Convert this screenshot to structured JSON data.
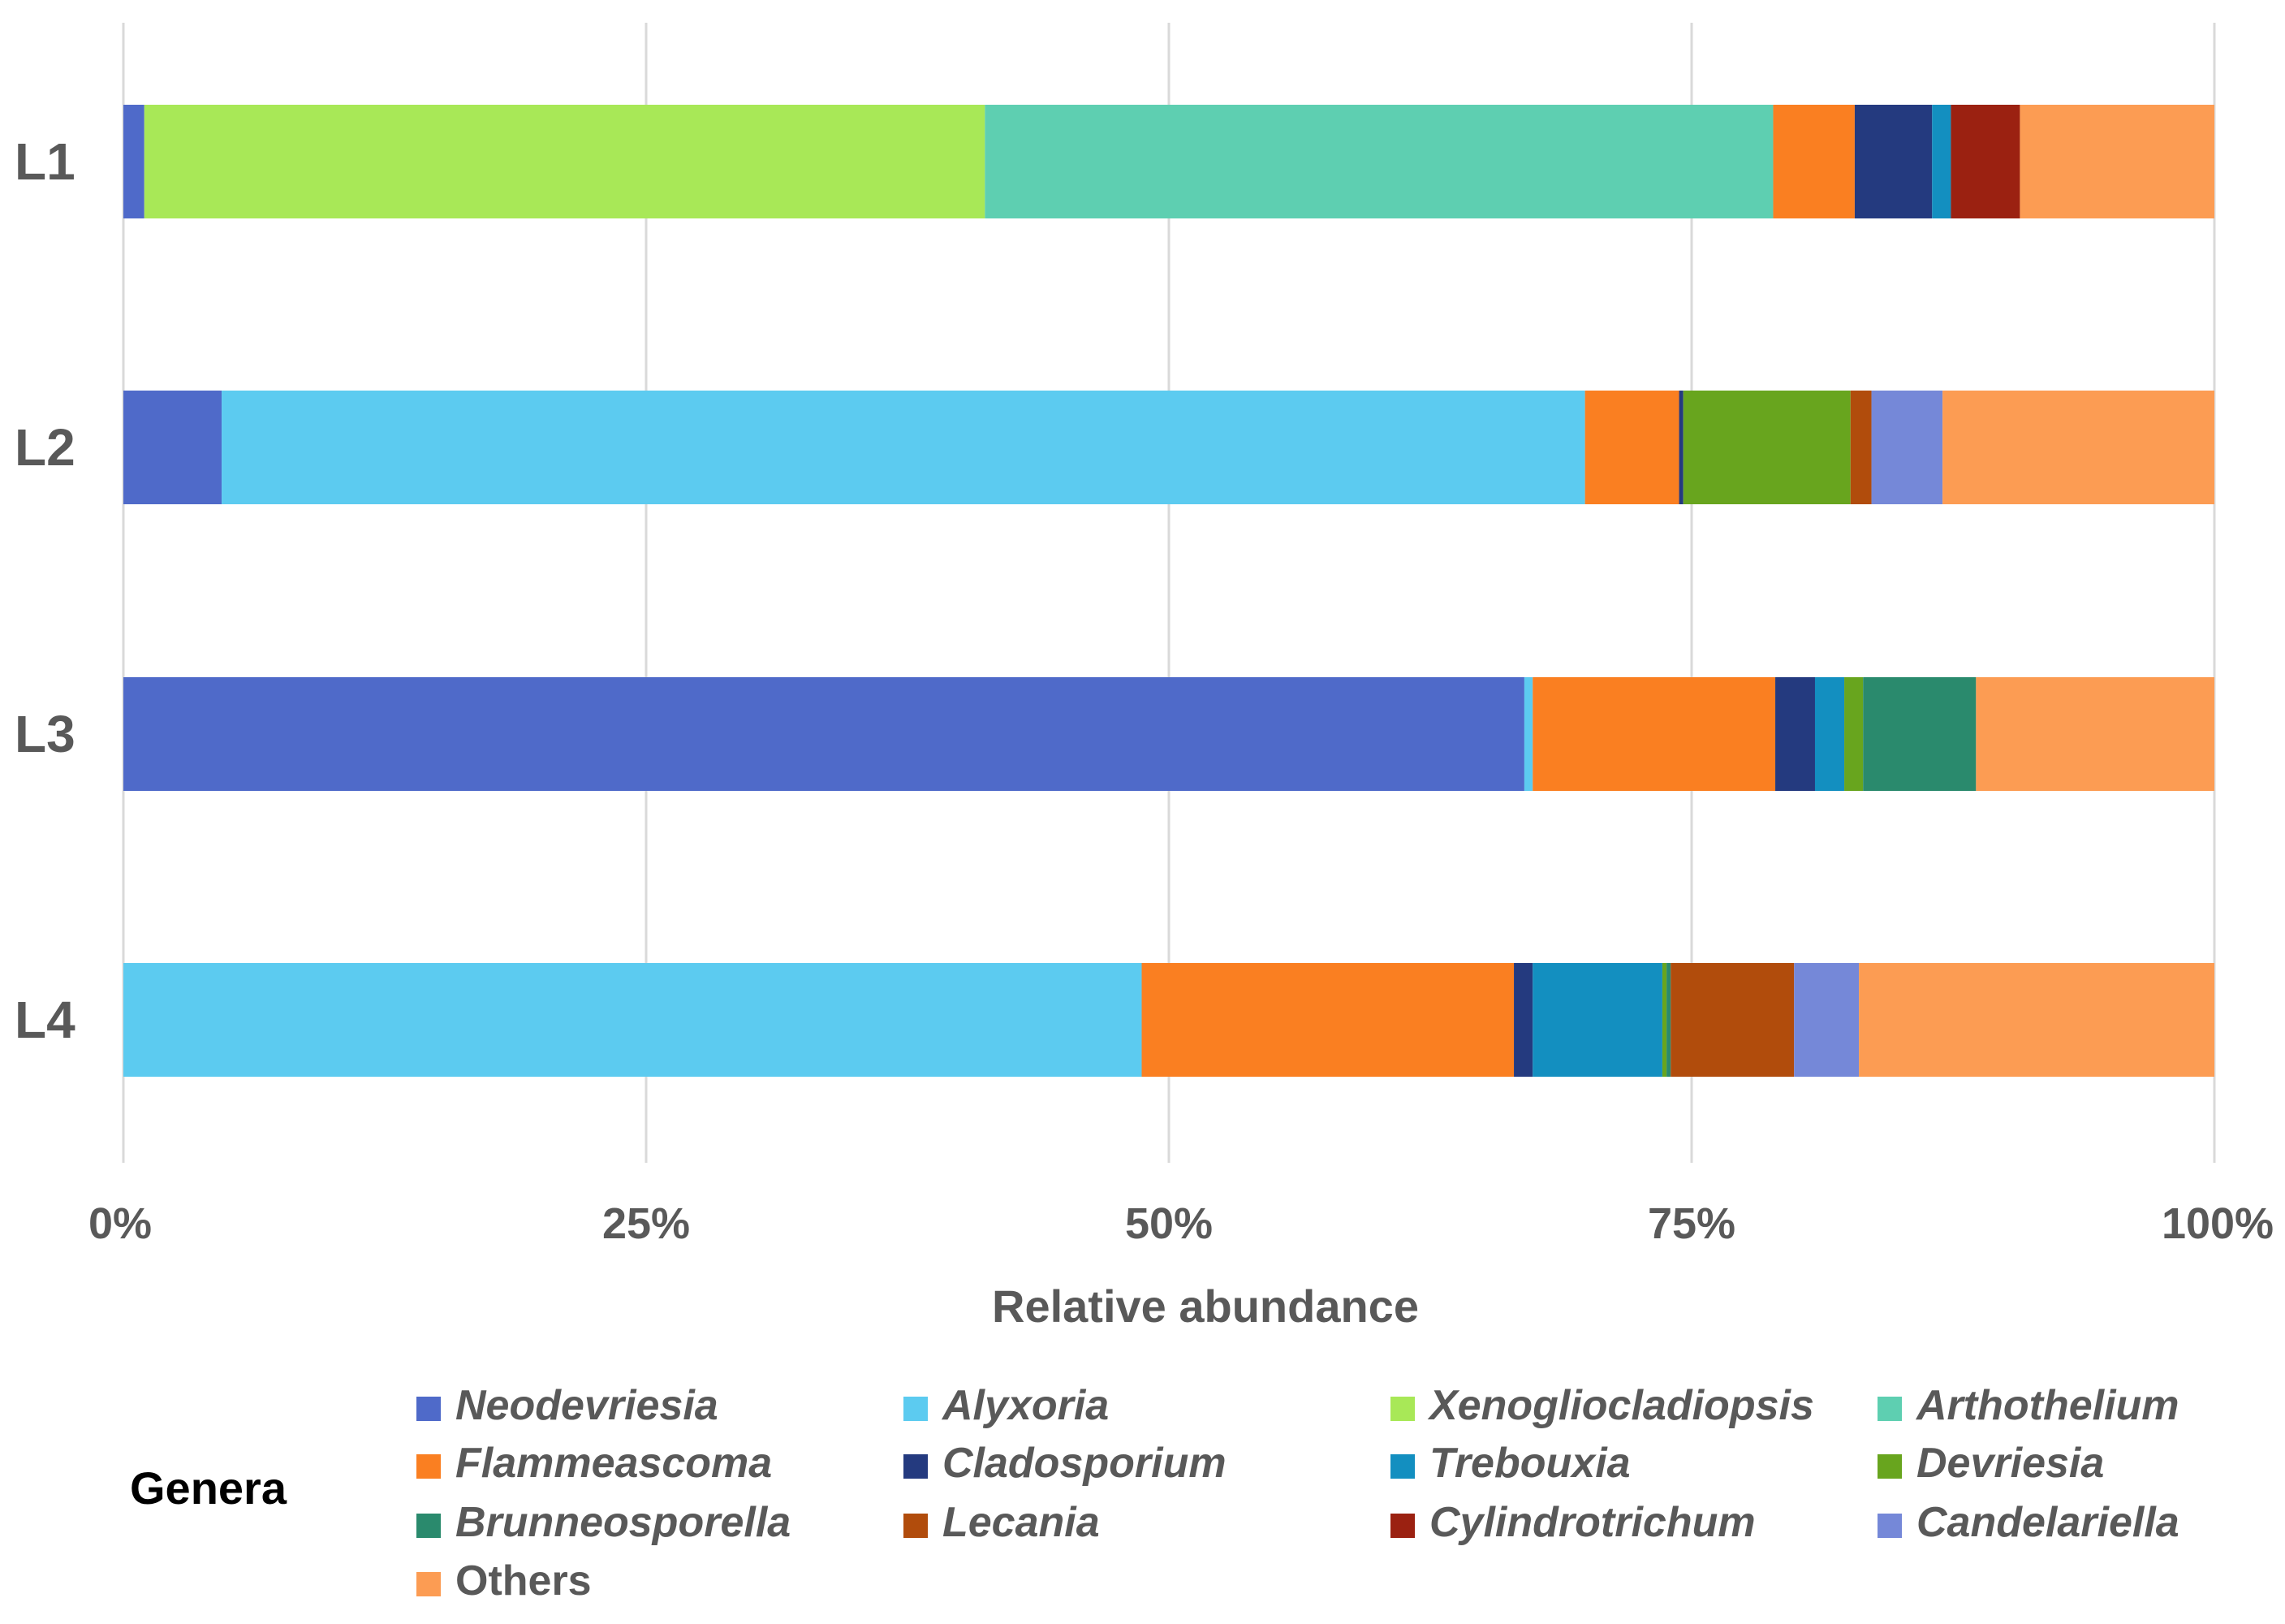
{
  "chart_data": {
    "type": "bar",
    "orientation": "horizontal",
    "stacked": "percent",
    "categories": [
      "L1",
      "L2",
      "L3",
      "L4"
    ],
    "xlabel": "Relative abundance",
    "xlim": [
      0,
      100
    ],
    "x_ticks": [
      "0%",
      "25%",
      "50%",
      "75%",
      "100%"
    ],
    "grid": true,
    "legend_title": "Genera",
    "legend_position": "bottom",
    "series": [
      {
        "name": "Neodevriesia",
        "color": "#4F6AC9",
        "italic": true,
        "values": [
          1.0,
          4.7,
          67.0,
          0.0
        ]
      },
      {
        "name": "Alyxoria",
        "color": "#5CCBF0",
        "italic": true,
        "values": [
          0.0,
          65.2,
          0.4,
          48.7
        ]
      },
      {
        "name": "Xenogliocladiopsis",
        "color": "#A8E857",
        "italic": true,
        "values": [
          40.2,
          0.0,
          0.0,
          0.0
        ]
      },
      {
        "name": "Arthothelium",
        "color": "#5ECFB1",
        "italic": true,
        "values": [
          37.7,
          0.0,
          0.0,
          0.0
        ]
      },
      {
        "name": "Flammeascoma",
        "color": "#FA7F21",
        "italic": true,
        "values": [
          3.9,
          4.5,
          11.6,
          17.8
        ]
      },
      {
        "name": "Cladosporium",
        "color": "#243A7F",
        "italic": true,
        "values": [
          3.7,
          0.2,
          1.9,
          0.9
        ]
      },
      {
        "name": "Trebouxia",
        "color": "#138FC0",
        "italic": true,
        "values": [
          0.9,
          0.0,
          1.4,
          6.2
        ]
      },
      {
        "name": "Devriesia",
        "color": "#68A51E",
        "italic": true,
        "values": [
          0.0,
          8.0,
          0.9,
          0.2
        ]
      },
      {
        "name": "Brunneosporella",
        "color": "#2A8A6D",
        "italic": true,
        "values": [
          0.0,
          0.0,
          5.4,
          0.2
        ]
      },
      {
        "name": "Lecania",
        "color": "#B14C0C",
        "italic": true,
        "values": [
          0.0,
          1.0,
          0.0,
          5.9
        ]
      },
      {
        "name": "Cylindrotrichum",
        "color": "#9B2111",
        "italic": true,
        "values": [
          3.3,
          0.0,
          0.0,
          0.0
        ]
      },
      {
        "name": "Candelariella",
        "color": "#7588D8",
        "italic": true,
        "values": [
          0.0,
          3.4,
          0.0,
          3.1
        ]
      },
      {
        "name": "Others",
        "color": "#FC9C53",
        "italic": false,
        "values": [
          9.3,
          13.0,
          11.4,
          17.0
        ]
      }
    ],
    "gridline_color": "#D9D9D9"
  }
}
